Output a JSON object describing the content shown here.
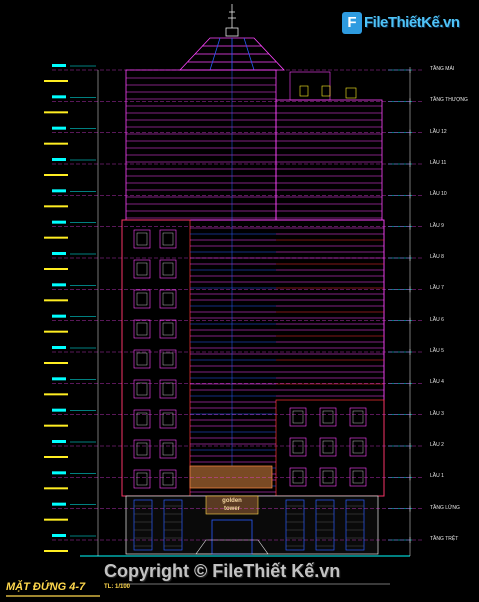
{
  "logo": {
    "text": "FileThiếtKế.vn",
    "mark": "F"
  },
  "drawing": {
    "title": "MẶT ĐỨNG 4-7",
    "scale": "TL: 1/100",
    "sign_line1": "golden",
    "sign_line2": "tower"
  },
  "watermark": "Copyright © FileThiết Kế.vn",
  "floor_labels": [
    "TẦNG MÁI",
    "TẦNG THƯỢNG",
    "LẦU 12",
    "LẦU 11",
    "LẦU 10",
    "LẦU 9",
    "LẦU 8",
    "LẦU 7",
    "LẦU 6",
    "LẦU 5",
    "LẦU 4",
    "LẦU 3",
    "LẦU 2",
    "LẦU 1",
    "TẦNG LỬNG",
    "TẦNG TRỆT"
  ],
  "colors": {
    "background": "#000000",
    "outline": "#ff44ff",
    "glass": "#2a5cff",
    "red": "#ff3333",
    "yellow": "#ffee22",
    "cyan": "#00ffff"
  }
}
